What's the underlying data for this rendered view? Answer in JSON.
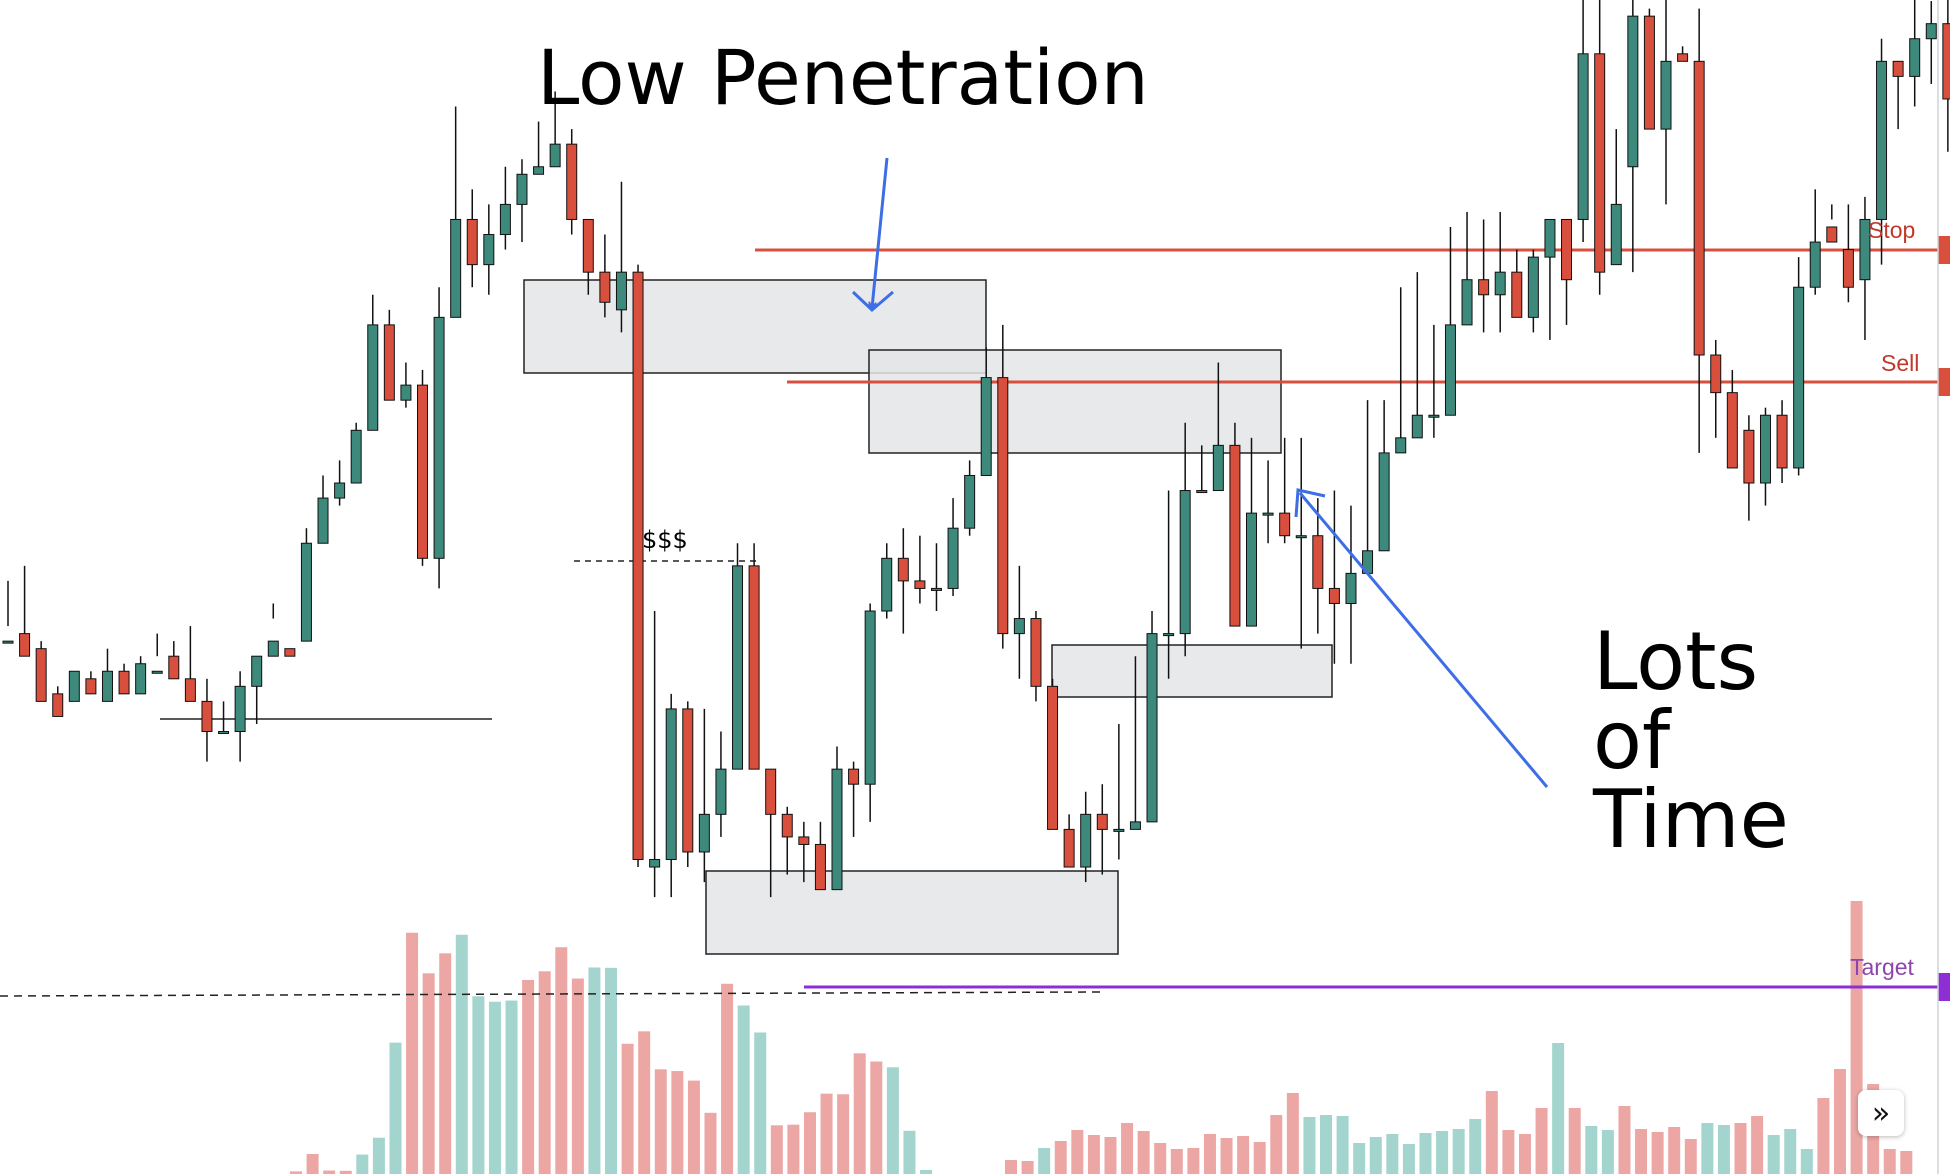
{
  "annotations": {
    "title": "Low Penetration",
    "time_note_lines": [
      "Lots",
      "of",
      "Time"
    ],
    "liquidity_label": "$$$"
  },
  "levels": {
    "stop": {
      "label": "Stop",
      "color": "#c0392b"
    },
    "sell": {
      "label": "Sell",
      "color": "#c0392b"
    },
    "target": {
      "label": "Target",
      "color": "#8e44ad"
    }
  },
  "controls": {
    "scroll_forward_icon": "double-chevron-right-icon",
    "scroll_forward_glyph": "»"
  },
  "colors": {
    "bull": "#3d8a7c",
    "bear": "#d94f3d",
    "bull_volume": "#a3d4ce",
    "bear_volume": "#eca7a4",
    "zone_fill": "#e4e5e8",
    "arrow": "#3d6ee6"
  },
  "chart_data": {
    "type": "candlestick",
    "title": "",
    "xlabel": "",
    "ylabel": "",
    "levels": {
      "stop": 115.5,
      "sell": 100.5,
      "target": 31.5
    },
    "candles": [
      [
        62,
        62,
        70,
        64
      ],
      [
        63,
        60,
        72,
        61
      ],
      [
        61,
        54,
        62,
        55
      ],
      [
        55,
        52,
        56,
        54
      ],
      [
        54,
        58,
        58,
        57
      ],
      [
        57,
        55,
        58,
        55
      ],
      [
        54,
        58,
        61,
        57
      ],
      [
        58,
        55,
        59,
        56
      ],
      [
        55,
        59,
        60,
        58
      ],
      [
        58,
        58,
        63,
        60
      ],
      [
        60,
        57,
        62,
        58
      ],
      [
        57,
        54,
        64,
        54
      ],
      [
        54,
        50,
        57,
        46
      ],
      [
        50,
        50,
        54,
        50
      ],
      [
        50,
        56,
        58,
        46
      ],
      [
        56,
        60,
        60,
        51
      ],
      [
        60,
        62,
        67,
        65
      ],
      [
        61,
        60,
        62,
        62
      ],
      [
        62,
        75,
        77,
        72
      ],
      [
        75,
        81,
        84,
        75
      ],
      [
        81,
        83,
        86,
        80
      ],
      [
        83,
        90,
        91,
        83
      ],
      [
        90,
        104,
        108,
        90
      ],
      [
        104,
        94,
        106,
        94
      ],
      [
        94,
        96,
        99,
        93
      ],
      [
        96,
        73,
        98,
        72
      ],
      [
        73,
        105,
        109,
        69
      ],
      [
        105,
        118,
        133,
        105
      ],
      [
        118,
        112,
        122,
        109
      ],
      [
        112,
        116,
        120,
        108
      ],
      [
        116,
        120,
        125,
        114
      ],
      [
        120,
        124,
        126,
        115
      ],
      [
        124,
        125,
        131,
        124
      ],
      [
        125,
        128,
        135,
        125
      ],
      [
        128,
        118,
        130,
        116
      ],
      [
        118,
        111,
        118,
        108
      ],
      [
        111,
        107,
        116,
        105
      ],
      [
        106,
        111,
        123,
        103
      ],
      [
        111,
        33,
        112,
        32
      ],
      [
        32,
        33,
        66,
        28
      ],
      [
        33,
        53,
        55,
        28
      ],
      [
        53,
        34,
        54,
        32
      ],
      [
        34,
        39,
        53,
        30
      ],
      [
        39,
        45,
        50,
        36
      ],
      [
        45,
        72,
        75,
        45
      ],
      [
        72,
        45,
        75,
        45
      ],
      [
        45,
        39,
        45,
        28
      ],
      [
        39,
        36,
        40,
        31
      ],
      [
        36,
        35,
        38,
        30
      ],
      [
        35,
        29,
        38,
        29
      ],
      [
        29,
        45,
        48,
        29
      ],
      [
        45,
        43,
        46,
        36
      ],
      [
        43,
        66,
        67,
        38
      ],
      [
        66,
        73,
        75,
        65
      ],
      [
        73,
        70,
        77,
        63
      ],
      [
        70,
        69,
        76,
        67
      ],
      [
        69,
        69,
        75,
        66
      ],
      [
        69,
        77,
        81,
        68
      ],
      [
        77,
        84,
        86,
        76
      ],
      [
        84,
        97,
        101,
        84
      ],
      [
        97,
        63,
        104,
        61
      ],
      [
        63,
        65,
        72,
        57
      ],
      [
        65,
        56,
        66,
        54
      ],
      [
        56,
        37,
        57,
        37
      ],
      [
        37,
        32,
        39,
        32
      ],
      [
        32,
        39,
        42,
        30
      ],
      [
        39,
        37,
        43,
        31
      ],
      [
        37,
        37,
        51,
        33
      ],
      [
        37,
        38,
        60,
        37
      ],
      [
        38,
        63,
        66,
        38
      ],
      [
        63,
        63,
        82,
        57
      ],
      [
        63,
        82,
        91,
        60
      ],
      [
        82,
        82,
        88,
        82
      ],
      [
        82,
        88,
        99,
        88
      ],
      [
        88,
        64,
        91,
        64
      ],
      [
        64,
        79,
        89,
        64
      ],
      [
        79,
        79,
        86,
        75
      ],
      [
        79,
        76,
        89,
        75
      ],
      [
        76,
        76,
        89,
        61
      ],
      [
        76,
        69,
        81,
        63
      ],
      [
        69,
        67,
        82,
        59
      ],
      [
        67,
        71,
        80,
        59
      ],
      [
        71,
        74,
        94,
        72
      ],
      [
        74,
        87,
        94,
        75
      ],
      [
        87,
        89,
        109,
        87
      ],
      [
        89,
        92,
        111,
        89
      ],
      [
        92,
        92,
        104,
        89
      ],
      [
        92,
        104,
        117,
        98
      ],
      [
        104,
        110,
        119,
        105
      ],
      [
        110,
        108,
        118,
        103
      ],
      [
        108,
        111,
        119,
        103
      ],
      [
        111,
        105,
        114,
        105
      ],
      [
        105,
        113,
        114,
        103
      ],
      [
        113,
        118,
        118,
        102
      ],
      [
        118,
        110,
        113,
        104
      ],
      [
        118,
        140,
        148,
        115
      ],
      [
        140,
        111,
        148,
        108
      ],
      [
        112,
        120,
        130,
        118
      ],
      [
        125,
        145,
        154,
        111
      ],
      [
        145,
        130,
        146,
        130
      ],
      [
        130,
        139,
        150,
        120
      ],
      [
        140,
        139,
        141,
        139
      ],
      [
        139,
        100,
        146,
        87
      ],
      [
        100,
        95,
        102,
        89
      ],
      [
        95,
        85,
        98,
        85
      ],
      [
        90,
        83,
        92,
        78
      ],
      [
        83,
        92,
        93,
        80
      ],
      [
        92,
        85,
        94,
        83
      ],
      [
        85,
        109,
        113,
        84
      ],
      [
        109,
        115,
        122,
        108
      ],
      [
        117,
        115,
        120,
        118
      ],
      [
        114,
        109,
        120,
        107
      ],
      [
        110,
        118,
        121,
        102
      ],
      [
        118,
        139,
        142,
        112
      ],
      [
        139,
        137,
        139,
        130
      ],
      [
        137,
        142,
        149,
        133
      ],
      [
        142,
        144,
        147,
        136
      ],
      [
        144,
        134,
        153,
        127
      ],
      [
        134,
        117,
        138,
        112
      ],
      [
        117,
        107,
        114,
        105
      ],
      [
        107,
        106,
        116,
        102
      ],
      [
        106,
        103,
        103,
        102
      ],
      [
        103,
        102,
        108,
        102
      ],
      [
        102,
        100,
        112,
        100
      ],
      [
        102,
        101,
        104,
        97
      ],
      [
        100,
        104,
        108,
        97
      ]
    ],
    "volume": [
      [
        0.9,
        0
      ],
      [
        6.9,
        0
      ],
      [
        1.2,
        0
      ],
      [
        1.1,
        0
      ],
      [
        6.7,
        1
      ],
      [
        12.5,
        1
      ],
      [
        45.3,
        1
      ],
      [
        83.2,
        0
      ],
      [
        69.2,
        0
      ],
      [
        76.1,
        0
      ],
      [
        82.5,
        1
      ],
      [
        61.3,
        1
      ],
      [
        59.4,
        1
      ],
      [
        59.8,
        1
      ],
      [
        66.9,
        0
      ],
      [
        69.9,
        0
      ],
      [
        78.2,
        0
      ],
      [
        67.4,
        0
      ],
      [
        71.2,
        1
      ],
      [
        71.1,
        1
      ],
      [
        44.9,
        0
      ],
      [
        49.2,
        0
      ],
      [
        36.1,
        0
      ],
      [
        35.5,
        0
      ],
      [
        32.2,
        0
      ],
      [
        21.1,
        0
      ],
      [
        65.6,
        0
      ],
      [
        58.1,
        1
      ],
      [
        48.8,
        1
      ],
      [
        16.8,
        0
      ],
      [
        17.0,
        0
      ],
      [
        21.3,
        0
      ],
      [
        27.7,
        0
      ],
      [
        27.5,
        0
      ],
      [
        41.6,
        0
      ],
      [
        38.8,
        0
      ],
      [
        36.8,
        1
      ],
      [
        14.9,
        1
      ],
      [
        1.4,
        1
      ]
    ]
  }
}
